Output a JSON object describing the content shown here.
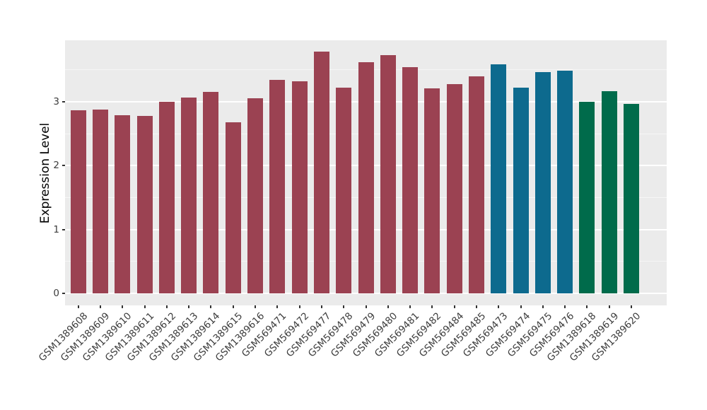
{
  "chart_data": {
    "type": "bar",
    "title": "",
    "xlabel": "",
    "ylabel": "Expression Level",
    "legend": "none",
    "grid": "major+minor",
    "panel_bg": "#EBEBEB",
    "gridline_color": "#FFFFFF",
    "tick_color": "#333333",
    "axis_text_color": "#3d3d3d",
    "y_ticks": [
      0,
      1,
      2,
      3
    ],
    "y_minor_ticks": [
      0.5,
      1.5,
      2.5,
      3.5
    ],
    "ylim": [
      -0.19,
      3.96
    ],
    "categories": [
      "GSM1389608",
      "GSM1389609",
      "GSM1389610",
      "GSM1389611",
      "GSM1389612",
      "GSM1389613",
      "GSM1389614",
      "GSM1389615",
      "GSM1389616",
      "GSM569471",
      "GSM569472",
      "GSM569477",
      "GSM569478",
      "GSM569479",
      "GSM569480",
      "GSM569481",
      "GSM569482",
      "GSM569484",
      "GSM569485",
      "GSM569473",
      "GSM569474",
      "GSM569475",
      "GSM569476",
      "GSM1389618",
      "GSM1389619",
      "GSM1389620"
    ],
    "values": [
      2.87,
      2.88,
      2.79,
      2.78,
      3.0,
      3.06,
      3.15,
      2.68,
      3.05,
      3.34,
      3.32,
      3.78,
      3.22,
      3.62,
      3.73,
      3.54,
      3.21,
      3.27,
      3.4,
      3.58,
      3.22,
      3.46,
      3.48,
      3.0,
      3.16,
      2.97
    ],
    "groups": [
      "maroon",
      "maroon",
      "maroon",
      "maroon",
      "maroon",
      "maroon",
      "maroon",
      "maroon",
      "maroon",
      "maroon",
      "maroon",
      "maroon",
      "maroon",
      "maroon",
      "maroon",
      "maroon",
      "maroon",
      "maroon",
      "maroon",
      "teal",
      "teal",
      "teal",
      "teal",
      "green",
      "green",
      "green"
    ],
    "group_colors": {
      "maroon": "#9B4252",
      "teal": "#0D6A8E",
      "green": "#006B4B"
    }
  }
}
